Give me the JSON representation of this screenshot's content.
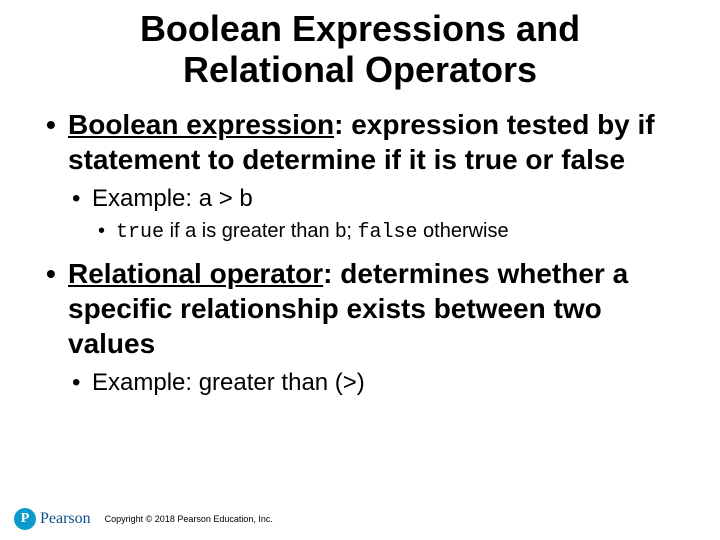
{
  "title": {
    "line1": "Boolean Expressions and",
    "line2": "Relational Operators",
    "fontsize": 36,
    "color": "#000000"
  },
  "bullets": {
    "b1": {
      "term": "Boolean expression",
      "rest": ": expression tested by if statement to determine if it is true or false",
      "fontsize": 28,
      "sub": {
        "b1a": {
          "text": "Example: a > b",
          "fontsize": 24,
          "sub": {
            "b1a1": {
              "pre": "",
              "code1": "true",
              "mid": " if a is greater than b; ",
              "code2": "false",
              "post": " otherwise",
              "fontsize": 20
            }
          }
        }
      }
    },
    "b2": {
      "term": "Relational operator",
      "rest": ": determines whether a specific relationship exists between two values",
      "fontsize": 28,
      "sub": {
        "b2a": {
          "text": "Example: greater than (>)",
          "fontsize": 24
        }
      }
    }
  },
  "footer": {
    "brand": "Pearson",
    "brand_fontsize": 16,
    "brand_color": "#0a4f8f",
    "p_bg": "#0a9bcc",
    "p_fg": "#ffffff",
    "p_letter": "P",
    "p_fontsize": 14,
    "copyright": "Copyright © 2018 Pearson Education, Inc.",
    "copy_fontsize": 9,
    "copy_color": "#000000"
  },
  "colors": {
    "background": "#ffffff",
    "text": "#000000"
  }
}
